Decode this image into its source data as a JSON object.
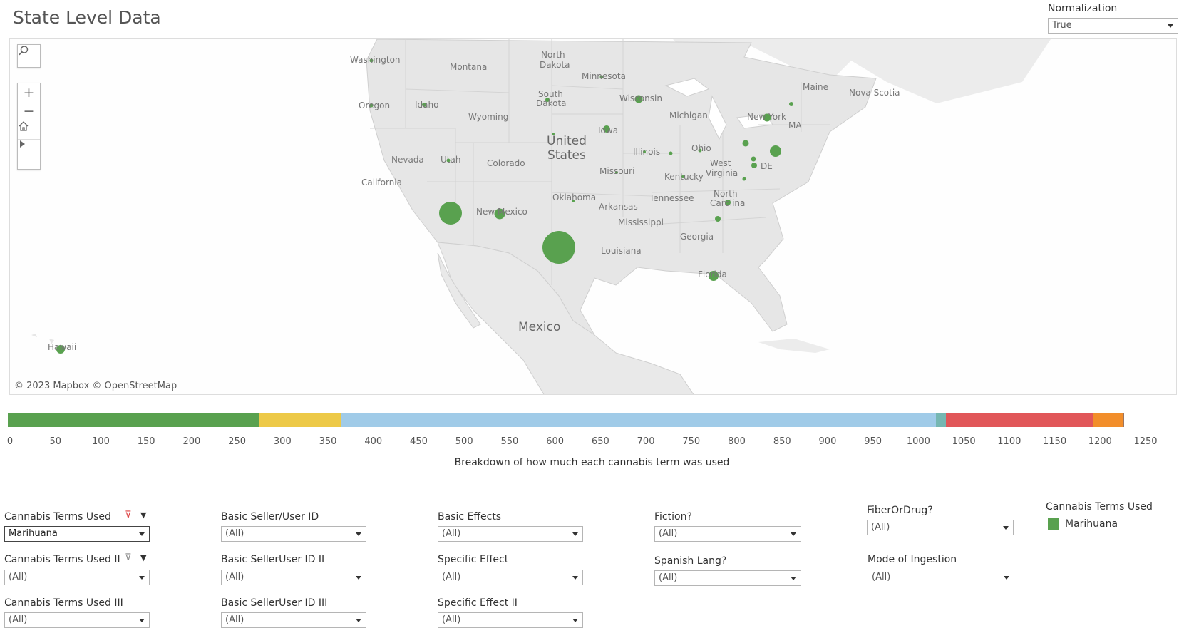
{
  "page": {
    "title": "State Level Data"
  },
  "normalization": {
    "label": "Normalization",
    "value": "True"
  },
  "map": {
    "attribution": "© 2023 Mapbox  © OpenStreetMap",
    "tools": [
      "search-icon",
      "zoom-in-icon",
      "zoom-out-icon",
      "home-icon",
      "play-icon"
    ],
    "labels": {
      "washington": "Washington",
      "montana": "Montana",
      "north_dakota_1": "North",
      "north_dakota_2": "Dakota",
      "minnesota": "Minnesota",
      "maine": "Maine",
      "nova_scotia": "Nova Scotia",
      "oregon": "Oregon",
      "idaho": "Idaho",
      "south_dakota_1": "South",
      "south_dakota_2": "Dakota",
      "wisconsin": "Wisconsin",
      "wyoming": "Wyoming",
      "michigan": "Michigan",
      "new_york": "New York",
      "ma": "MA",
      "iowa": "Iowa",
      "us_1": "United",
      "us_2": "States",
      "nevada": "Nevada",
      "utah": "Utah",
      "colorado": "Colorado",
      "illinois": "Illinois",
      "ohio": "Ohio",
      "california": "California",
      "missouri": "Missouri",
      "west_virginia_1": "West",
      "west_virginia_2": "Virginia",
      "de": "DE",
      "kentucky": "Kentucky",
      "tennessee": "Tennessee",
      "oklahoma": "Oklahoma",
      "north_carolina_1": "North",
      "north_carolina_2": "Carolina",
      "arkansas": "Arkansas",
      "new_mexico": "New Mexico",
      "mississippi": "Mississippi",
      "georgia": "Georgia",
      "louisiana": "Louisiana",
      "florida": "Florida",
      "mexico": "Mexico",
      "hawaii": "Hawaii"
    },
    "marker_color": "#59a14f"
  },
  "breakdown": {
    "axis_title": "Breakdown of how much each cannabis term was used",
    "ticks": [
      "0",
      "50",
      "100",
      "150",
      "200",
      "250",
      "300",
      "350",
      "400",
      "450",
      "500",
      "550",
      "600",
      "650",
      "700",
      "750",
      "800",
      "850",
      "900",
      "950",
      "1000",
      "1050",
      "1100",
      "1150",
      "1200",
      "1250"
    ],
    "segments": [
      {
        "value": 277,
        "color": "#59a14f"
      },
      {
        "value": 90,
        "color": "#edc948"
      },
      {
        "value": 655,
        "color": "#a0cbe8"
      },
      {
        "value": 11,
        "color": "#76b7b2"
      },
      {
        "value": 161,
        "color": "#e15759"
      },
      {
        "value": 33,
        "color": "#f28e2b"
      },
      {
        "value": 1,
        "color": "#9c755f"
      }
    ],
    "axis_max": 1250
  },
  "filters": {
    "cannabis_terms": {
      "label": "Cannabis Terms Used",
      "value": "Marihuana"
    },
    "cannabis_terms_2": {
      "label": "Cannabis Terms Used II",
      "value": "(All)"
    },
    "cannabis_terms_3": {
      "label": "Cannabis Terms Used III",
      "value": "(All)"
    },
    "seller_id": {
      "label": "Basic Seller/User ID",
      "value": "(All)"
    },
    "seller_id_2": {
      "label": "Basic SellerUser ID II",
      "value": "(All)"
    },
    "seller_id_3": {
      "label": "Basic SellerUser ID III",
      "value": "(All)"
    },
    "basic_effects": {
      "label": "Basic Effects",
      "value": "(All)"
    },
    "specific_effect": {
      "label": "Specific Effect",
      "value": "(All)"
    },
    "specific_effect_2": {
      "label": "Specific Effect II",
      "value": "(All)"
    },
    "fiction": {
      "label": "Fiction?",
      "value": "(All)"
    },
    "spanish": {
      "label": "Spanish Lang?",
      "value": "(All)"
    },
    "fiber_drug": {
      "label": "FiberOrDrug?",
      "value": "(All)"
    },
    "ingestion": {
      "label": "Mode of Ingestion",
      "value": "(All)"
    }
  },
  "legend": {
    "title": "Cannabis Terms Used",
    "item": "Marihuana",
    "color": "#59a14f"
  }
}
